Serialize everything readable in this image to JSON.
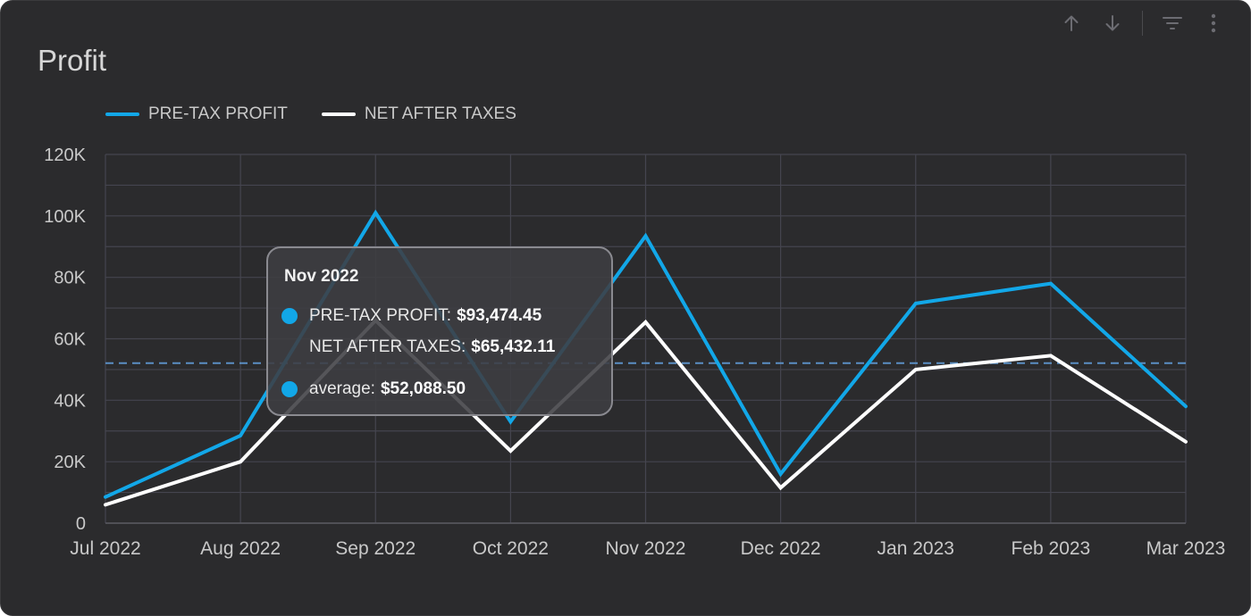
{
  "card": {
    "title": "Profit"
  },
  "toolbar": {
    "items": [
      {
        "name": "arrow-up-icon"
      },
      {
        "name": "arrow-down-icon"
      },
      {
        "name": "filter-icon"
      },
      {
        "name": "more-vertical-icon"
      }
    ]
  },
  "colors": {
    "background": "#2b2b2d",
    "pre_tax": "#12a7e8",
    "net": "#ffffff",
    "average": "#5b8fc4",
    "grid": "#45454f",
    "text": "#c9c9c9"
  },
  "tooltip": {
    "title": "Nov 2022",
    "rows": [
      {
        "label": "PRE-TAX PROFIT:",
        "value": "$93,474.45"
      },
      {
        "label": "NET AFTER TAXES:",
        "value": "$65,432.11"
      },
      {
        "label": "average:",
        "value": "$52,088.50"
      }
    ]
  },
  "chart_data": {
    "type": "line",
    "categories": [
      "Jul 2022",
      "Aug 2022",
      "Sep 2022",
      "Oct 2022",
      "Nov 2022",
      "Dec 2022",
      "Jan 2023",
      "Feb 2023",
      "Mar 2023"
    ],
    "series": [
      {
        "name": "PRE-TAX PROFIT",
        "color": "#12a7e8",
        "values": [
          8500,
          28500,
          101000,
          33000,
          93474.45,
          16000,
          71500,
          78000,
          38000
        ]
      },
      {
        "name": "NET AFTER TAXES",
        "color": "#ffffff",
        "values": [
          6000,
          20000,
          66000,
          23500,
          65432.11,
          11500,
          50000,
          54500,
          26500
        ]
      }
    ],
    "average": 52088.5,
    "ylim": [
      0,
      120000
    ],
    "yticks": [
      0,
      20000,
      40000,
      60000,
      80000,
      100000,
      120000
    ],
    "ytick_labels": [
      "0",
      "20K",
      "40K",
      "60K",
      "80K",
      "100K",
      "120K"
    ],
    "grid": true,
    "legend_position": "top-left"
  }
}
